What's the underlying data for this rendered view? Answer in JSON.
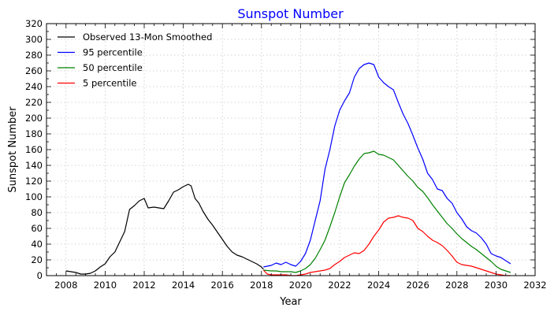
{
  "chart_data": {
    "type": "line",
    "title": "Sunspot Number",
    "title_color": "#0000ff",
    "xlabel": "Year",
    "ylabel": "Sunspot Number",
    "xlim": [
      2007,
      2032
    ],
    "ylim": [
      0,
      320
    ],
    "xticks": [
      2008,
      2010,
      2012,
      2014,
      2016,
      2018,
      2020,
      2022,
      2024,
      2026,
      2028,
      2030,
      2032
    ],
    "yticks": [
      0,
      20,
      40,
      60,
      80,
      100,
      120,
      140,
      160,
      180,
      200,
      220,
      240,
      260,
      280,
      300,
      320
    ],
    "grid": true,
    "legend_position": "top-left",
    "series": [
      {
        "name": "Observed 13-Mon Smoothed",
        "color": "#000000",
        "x": [
          2008.0,
          2008.25,
          2008.5,
          2008.75,
          2009.0,
          2009.25,
          2009.5,
          2009.75,
          2010.0,
          2010.25,
          2010.5,
          2010.75,
          2011.0,
          2011.25,
          2011.5,
          2011.75,
          2012.0,
          2012.2,
          2012.5,
          2012.75,
          2013.0,
          2013.25,
          2013.5,
          2013.75,
          2014.0,
          2014.25,
          2014.4,
          2014.6,
          2014.8,
          2015.0,
          2015.25,
          2015.5,
          2015.75,
          2016.0,
          2016.25,
          2016.5,
          2016.75,
          2017.0,
          2017.25,
          2017.5,
          2017.75,
          2018.0,
          2018.1
        ],
        "y": [
          6,
          5,
          4,
          2,
          2,
          3,
          6,
          11,
          15,
          24,
          30,
          43,
          56,
          84,
          89,
          95,
          98,
          86,
          87,
          86,
          85,
          95,
          106,
          109,
          113,
          116,
          114,
          98,
          92,
          82,
          72,
          64,
          55,
          46,
          37,
          30,
          26,
          24,
          21,
          18,
          15,
          11,
          8
        ]
      },
      {
        "name": "95 percentile",
        "color": "#0000ff",
        "x": [
          2018.1,
          2018.5,
          2018.75,
          2019.0,
          2019.25,
          2019.5,
          2019.75,
          2020.0,
          2020.25,
          2020.5,
          2020.75,
          2021.0,
          2021.25,
          2021.5,
          2021.75,
          2022.0,
          2022.25,
          2022.5,
          2022.75,
          2023.0,
          2023.25,
          2023.5,
          2023.75,
          2024.0,
          2024.25,
          2024.5,
          2024.75,
          2025.0,
          2025.25,
          2025.5,
          2025.75,
          2026.0,
          2026.25,
          2026.5,
          2026.75,
          2027.0,
          2027.25,
          2027.5,
          2027.75,
          2028.0,
          2028.25,
          2028.5,
          2028.75,
          2029.0,
          2029.25,
          2029.5,
          2029.75,
          2030.0,
          2030.25,
          2030.5,
          2030.75
        ],
        "y": [
          11,
          13,
          16,
          14,
          17,
          14,
          12,
          18,
          28,
          45,
          70,
          95,
          135,
          160,
          190,
          210,
          222,
          232,
          252,
          263,
          268,
          270,
          268,
          252,
          245,
          240,
          236,
          220,
          205,
          193,
          178,
          162,
          148,
          130,
          122,
          110,
          108,
          98,
          92,
          80,
          72,
          62,
          57,
          54,
          48,
          40,
          28,
          25,
          23,
          19,
          15
        ]
      },
      {
        "name": "50 percentile",
        "color": "#008000",
        "x": [
          2018.1,
          2018.5,
          2018.75,
          2019.0,
          2019.25,
          2019.5,
          2019.75,
          2020.0,
          2020.25,
          2020.5,
          2020.75,
          2021.0,
          2021.25,
          2021.5,
          2021.75,
          2022.0,
          2022.25,
          2022.5,
          2022.75,
          2023.0,
          2023.25,
          2023.5,
          2023.75,
          2024.0,
          2024.25,
          2024.5,
          2024.75,
          2025.0,
          2025.25,
          2025.5,
          2025.75,
          2026.0,
          2026.25,
          2026.5,
          2026.75,
          2027.0,
          2027.25,
          2027.5,
          2027.75,
          2028.0,
          2028.25,
          2028.5,
          2028.75,
          2029.0,
          2029.25,
          2029.5,
          2029.75,
          2030.0,
          2030.25,
          2030.5,
          2030.75
        ],
        "y": [
          7,
          6,
          6,
          5,
          5,
          5,
          4,
          6,
          9,
          14,
          22,
          33,
          45,
          62,
          80,
          100,
          118,
          128,
          139,
          148,
          155,
          156,
          158,
          154,
          153,
          150,
          147,
          140,
          133,
          126,
          120,
          112,
          107,
          99,
          90,
          82,
          74,
          66,
          60,
          53,
          47,
          42,
          37,
          33,
          28,
          23,
          18,
          12,
          8,
          6,
          4
        ]
      },
      {
        "name": "5 percentile",
        "color": "#ff0000",
        "x": [
          2018.1,
          2018.3,
          2018.5,
          2018.75,
          2019.0,
          2019.25,
          2019.5,
          2019.75,
          2020.0,
          2020.25,
          2020.5,
          2020.75,
          2021.0,
          2021.25,
          2021.5,
          2021.75,
          2022.0,
          2022.25,
          2022.5,
          2022.75,
          2023.0,
          2023.25,
          2023.5,
          2023.75,
          2024.0,
          2024.25,
          2024.5,
          2024.75,
          2025.0,
          2025.25,
          2025.5,
          2025.75,
          2026.0,
          2026.25,
          2026.5,
          2026.75,
          2027.0,
          2027.25,
          2027.5,
          2027.75,
          2028.0,
          2028.25,
          2028.5,
          2028.75,
          2029.0,
          2029.25,
          2029.5,
          2029.75,
          2030.0,
          2030.25,
          2030.5,
          2030.75
        ],
        "y": [
          7,
          2,
          1,
          1,
          1,
          1,
          0,
          0,
          1,
          2,
          4,
          5,
          6,
          7,
          9,
          14,
          18,
          23,
          26,
          29,
          28,
          32,
          40,
          50,
          58,
          68,
          73,
          74,
          76,
          74,
          73,
          70,
          60,
          56,
          50,
          45,
          42,
          38,
          32,
          25,
          17,
          14,
          13,
          12,
          10,
          8,
          6,
          4,
          2,
          1,
          0,
          0
        ]
      }
    ]
  }
}
